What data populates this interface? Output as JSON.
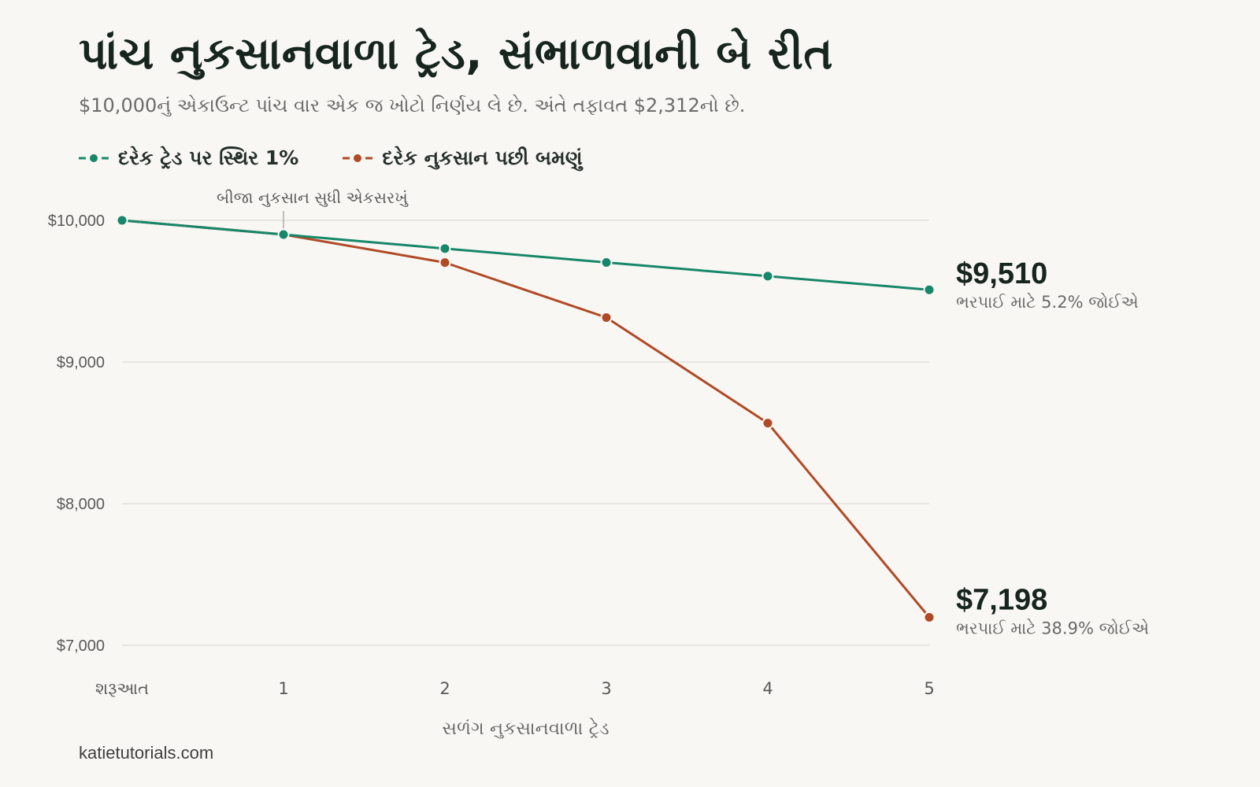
{
  "title": "પાંચ નુકસાનવાળા ટ્રેડ, સંભાળવાની બે રીત",
  "subtitle": "$10,000નું એકાઉન્ટ પાંચ વાર એક જ ખોટો નિર્ણય લે છે. અંતે તફાવત $2,312નો છે.",
  "legend": {
    "steady_label": "દરેક ટ્રેડ પર સ્થિર 1%",
    "doubling_label": "દરેક નુકસાન પછી બમણું"
  },
  "footer": "katietutorials.com",
  "colors": {
    "steady": "#16876a",
    "doubling": "#b04a26",
    "grid": "#e3e0da",
    "background": "#f9f7f3"
  },
  "chart_data": {
    "type": "line",
    "xlabel": "સળંગ નુકસાનવાળા ટ્રેડ",
    "ylabel": "",
    "categories": [
      "શરૂઆત",
      "1",
      "2",
      "3",
      "4",
      "5"
    ],
    "ylim": [
      7000,
      10000
    ],
    "yticks": [
      10000,
      9000,
      8000,
      7000
    ],
    "ytick_labels": [
      "$10,000",
      "$9,000",
      "$8,000",
      "$7,000"
    ],
    "grid": true,
    "legend_position": "top-left",
    "series": [
      {
        "key": "steady",
        "name": "દરેક ટ્રેડ પર સ્થિર 1%",
        "values": [
          10000,
          9900,
          9801,
          9703,
          9606,
          9510
        ],
        "end_label": "$9,510",
        "end_note": "ભરપાઈ માટે 5.2% જોઈએ"
      },
      {
        "key": "doubling",
        "name": "દરેક નુકસાન પછી બમણું",
        "values": [
          10000,
          9900,
          9702,
          9314,
          8569,
          7198
        ],
        "end_label": "$7,198",
        "end_note": "ભરપાઈ માટે 38.9% જોઈએ"
      }
    ],
    "annotations": [
      {
        "text": "બીજા નુકસાન સુધી એકસરખું",
        "x_index": 1,
        "y": 9900
      }
    ]
  }
}
